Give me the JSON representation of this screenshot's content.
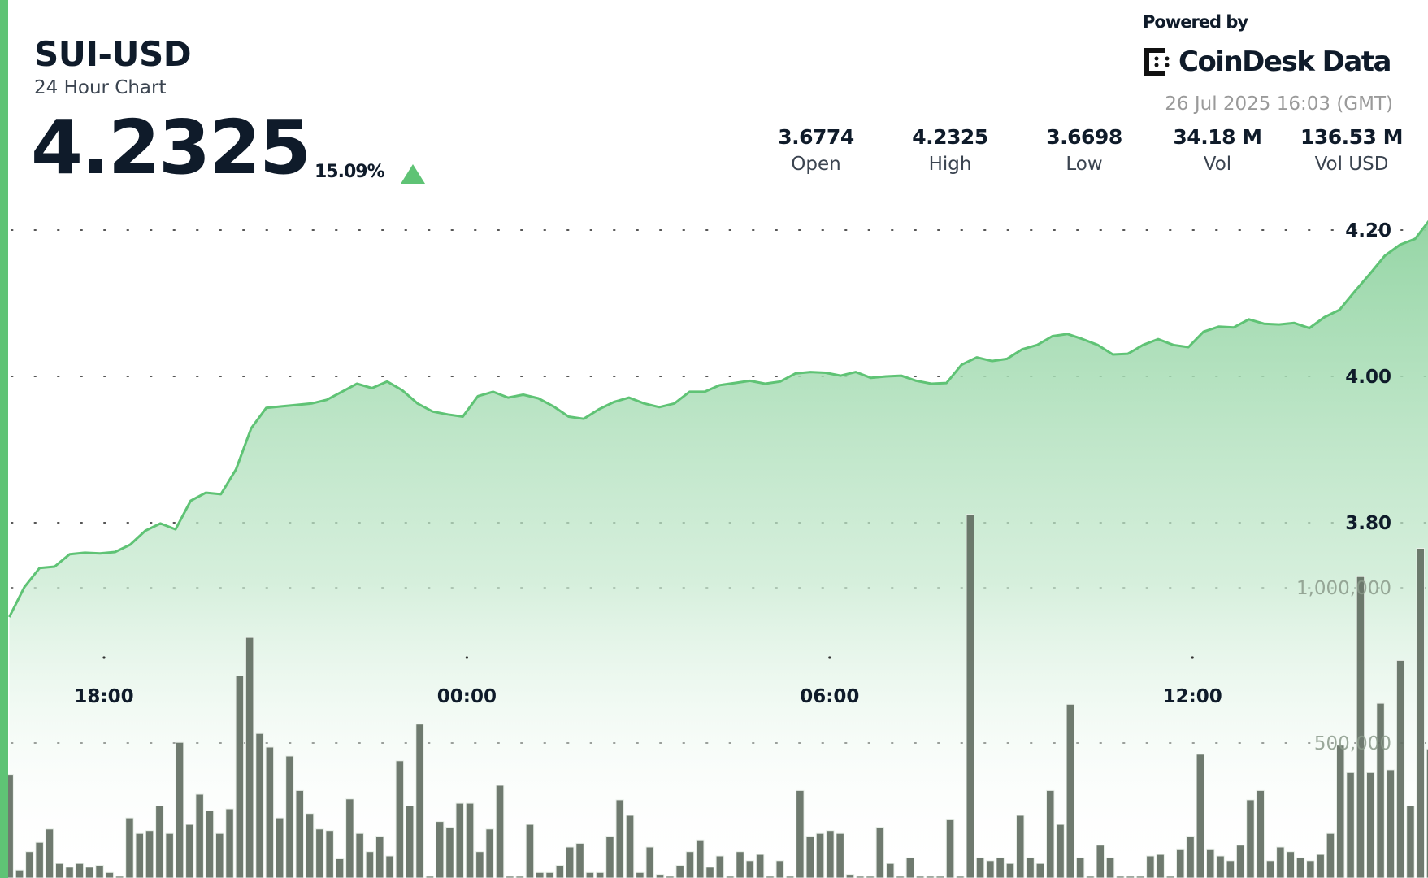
{
  "header": {
    "pair": "SUI-USD",
    "subtitle": "24 Hour Chart",
    "price": "4.2325",
    "change": "15.09%",
    "direction": "up",
    "direction_icon": "triangle-up-icon"
  },
  "branding": {
    "powered_by": "Powered by",
    "logo_text": "CoinDesk Data",
    "timestamp": "26 Jul 2025 16:03 (GMT)"
  },
  "stats": [
    {
      "value": "3.6774",
      "label": "Open"
    },
    {
      "value": "4.2325",
      "label": "High"
    },
    {
      "value": "3.6698",
      "label": "Low"
    },
    {
      "value": "34.18 M",
      "label": "Vol"
    },
    {
      "value": "136.53 M",
      "label": "Vol USD"
    }
  ],
  "colors": {
    "accent": "#5fc375",
    "line": "#5fc375",
    "fill_top": "#8fd3a0",
    "volume_bar": "#5f6b5f",
    "text": "#0f1b2a"
  },
  "chart_data": {
    "type": "area",
    "grid": "dotted horizontal",
    "x_ticks": [
      "18:00",
      "00:00",
      "06:00",
      "12:00"
    ],
    "price": {
      "y_ticks": [
        "4.20",
        "4.00",
        "3.80"
      ],
      "start": "16:26",
      "interval_minutes": 15,
      "values": [
        3.671,
        3.712,
        3.738,
        3.74,
        3.757,
        3.759,
        3.758,
        3.76,
        3.77,
        3.789,
        3.799,
        3.791,
        3.83,
        3.841,
        3.839,
        3.873,
        3.929,
        3.957,
        3.959,
        3.961,
        3.963,
        3.968,
        3.979,
        3.99,
        3.984,
        3.993,
        3.981,
        3.963,
        3.952,
        3.948,
        3.945,
        3.973,
        3.979,
        3.971,
        3.975,
        3.97,
        3.959,
        3.945,
        3.942,
        3.955,
        3.965,
        3.971,
        3.963,
        3.958,
        3.963,
        3.979,
        3.979,
        3.988,
        3.991,
        3.994,
        3.99,
        3.993,
        4.004,
        4.006,
        4.005,
        4.001,
        4.006,
        3.998,
        4.0,
        4.001,
        3.994,
        3.99,
        3.991,
        4.016,
        4.026,
        4.021,
        4.024,
        4.037,
        4.043,
        4.055,
        4.058,
        4.051,
        4.043,
        4.03,
        4.031,
        4.043,
        4.051,
        4.043,
        4.04,
        4.061,
        4.068,
        4.067,
        4.078,
        4.072,
        4.071,
        4.073,
        4.066,
        4.081,
        4.091,
        4.116,
        4.14,
        4.165,
        4.18,
        4.188,
        4.215
      ]
    },
    "volume": {
      "type": "bar",
      "y_ticks": [
        "1,000,000",
        "500,000"
      ],
      "values": [
        399000,
        91000,
        150000,
        180000,
        223000,
        112000,
        100000,
        112000,
        100000,
        106000,
        83000,
        71000,
        259000,
        209000,
        218000,
        297000,
        209000,
        502000,
        238000,
        335000,
        282000,
        209000,
        288000,
        716000,
        840000,
        531000,
        487000,
        259000,
        458000,
        347000,
        273000,
        223000,
        218000,
        127000,
        320000,
        209000,
        150000,
        200000,
        136000,
        443000,
        297000,
        561000,
        71000,
        247000,
        229000,
        306000,
        306000,
        150000,
        223000,
        364000,
        71000,
        71000,
        238000,
        83000,
        83000,
        106000,
        165000,
        177000,
        83000,
        83000,
        200000,
        317000,
        267000,
        83000,
        165000,
        77000,
        71000,
        106000,
        150000,
        188000,
        100000,
        136000,
        71000,
        150000,
        121000,
        141000,
        71000,
        121000,
        71000,
        347000,
        200000,
        209000,
        218000,
        209000,
        77000,
        71000,
        71000,
        229000,
        112000,
        71000,
        130000,
        71000,
        71000,
        71000,
        253000,
        71000,
        1236000,
        130000,
        121000,
        130000,
        112000,
        267000,
        130000,
        112000,
        347000,
        238000,
        625000,
        130000,
        71000,
        171000,
        130000,
        71000,
        71000,
        71000,
        136000,
        141000,
        71000,
        159000,
        200000,
        464000,
        159000,
        136000,
        121000,
        171000,
        317000,
        347000,
        121000,
        165000,
        150000,
        130000,
        121000,
        141000,
        209000,
        493000,
        405000,
        1036000,
        405000,
        628000,
        414000,
        766000,
        297000,
        1127000,
        481000
      ]
    }
  }
}
